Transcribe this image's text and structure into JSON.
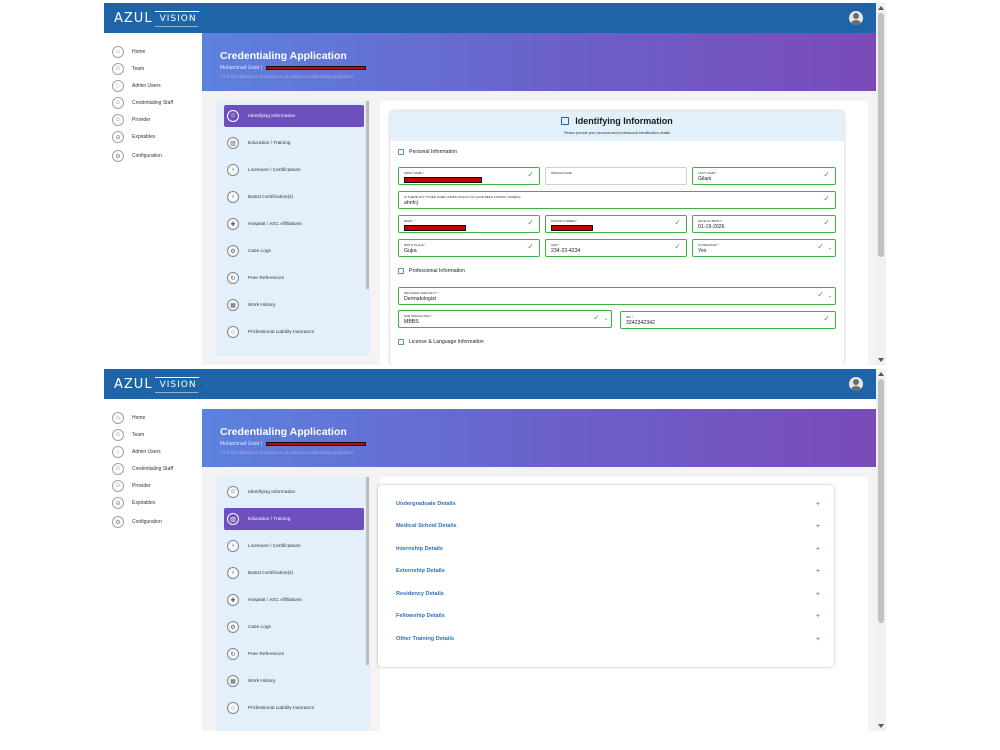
{
  "app": {
    "logo_main": "AZUL",
    "logo_accent": "VISION",
    "brand_color": "#1e64a8",
    "accent_color": "#6e4fbe"
  },
  "nav": {
    "items": [
      {
        "label": "Home",
        "icon": "home-icon",
        "glyph": "⌂"
      },
      {
        "label": "Team",
        "icon": "team-icon",
        "glyph": "☺"
      },
      {
        "label": "Admin Users",
        "icon": "shield-icon",
        "glyph": "♢"
      },
      {
        "label": "Credentialing Staff",
        "icon": "staff-icon",
        "glyph": "☺"
      },
      {
        "label": "Provider",
        "icon": "provider-icon",
        "glyph": "☺"
      },
      {
        "label": "Expirables",
        "icon": "expirables-icon",
        "glyph": "⊖"
      },
      {
        "label": "Configuration",
        "icon": "gear-icon",
        "glyph": "⚙"
      }
    ]
  },
  "banner": {
    "title": "Credentialing Application",
    "user": "Muhammad Usair  |",
    "note": "All of the information is required to be added to credentialing application."
  },
  "steps": [
    {
      "label": "Identifying Information",
      "icon": "user-icon",
      "glyph": "☺"
    },
    {
      "label": "Education / Training",
      "icon": "book-icon",
      "glyph": "▥"
    },
    {
      "label": "Licensure / Certifications",
      "icon": "award-icon",
      "glyph": "♁"
    },
    {
      "label": "Board Certification(s)",
      "icon": "badge-icon",
      "glyph": "♁"
    },
    {
      "label": "Hospital / ASC Affiliations",
      "icon": "hospital-icon",
      "glyph": "✚"
    },
    {
      "label": "Case Logs",
      "icon": "settings-icon",
      "glyph": "⚙"
    },
    {
      "label": "Peer References",
      "icon": "refresh-icon",
      "glyph": "↻"
    },
    {
      "label": "Work History",
      "icon": "calendar-icon",
      "glyph": "▦"
    },
    {
      "label": "Professional Liability Insurance",
      "icon": "shield-icon",
      "glyph": "♢"
    }
  ],
  "identifying": {
    "title": "Identifying Information",
    "subtitle": "Please provide your personal and professional identification details",
    "personal_header": "Personal Information",
    "professional_header": "Professional Information",
    "license_header": "License & Language Information",
    "first_name_label": "First Name *",
    "middle_name_label": "Middle Name",
    "last_name_label": "Last Name *",
    "last_name_value": "Gilani",
    "other_name_label": "Is there any other name under which you have been known? Name(s)",
    "other_name_value": "ahnfcj",
    "email_label": "Email *",
    "phone_label": "Phone Number *",
    "dob_label": "Date of Birth *",
    "dob_value": "01-19-2026",
    "birthplace_label": "Birth Place *",
    "birthplace_value": "Gujra",
    "ssn_label": "SSN *",
    "ssn_value": "234-23-4234",
    "citizenship_label": "Citizenship *",
    "citizenship_value": "Yes",
    "specialty_label": "Provider Specialty *",
    "specialty_value": "Dermatologist",
    "subspecialty_label": "Sub Specialties *",
    "subspecialty_value": "MBBS",
    "npi_label": "NPI *",
    "npi_value": "3242342342"
  },
  "education": {
    "sections": [
      "Undergraduate Details",
      "Medical School Details",
      "Internship Details",
      "Externship Details",
      "Residency Details",
      "Fellowship Details",
      "Other Training Details"
    ],
    "expand_glyph": "+"
  }
}
